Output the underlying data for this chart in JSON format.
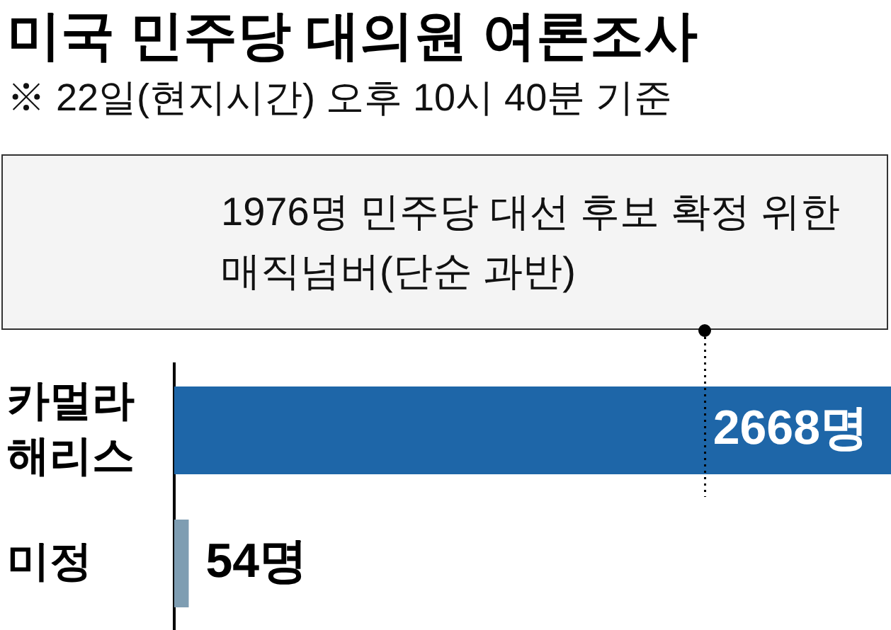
{
  "chart_data": {
    "type": "bar",
    "orientation": "horizontal",
    "title": "미국 민주당 대의원 여론조사",
    "subtitle": "※ 22일(현지시간) 오후 10시 40분 기준",
    "categories": [
      "카멀라 해리스",
      "미정"
    ],
    "values": [
      2668,
      54
    ],
    "colors": [
      "#1e66a8",
      "#7e9db2"
    ],
    "value_labels": [
      "2668명",
      "54명"
    ],
    "ref_lines": [
      {
        "axis": "x",
        "value": 1976,
        "label": "1976명 민주당 대선 후보 확정 위한 매직넘버(단순 과반)",
        "color": "#000000",
        "line_style": "dotted"
      }
    ]
  }
}
